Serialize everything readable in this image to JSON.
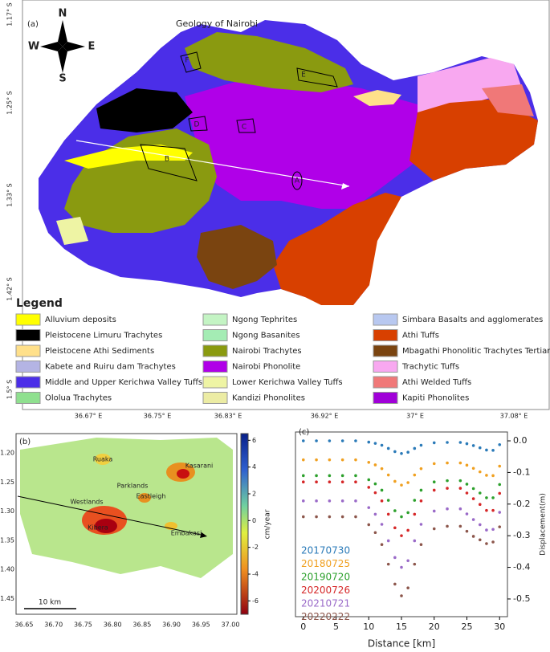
{
  "map_a": {
    "panel_label": "(a)",
    "title": "Geology of Nairobi",
    "compass": {
      "north": "N",
      "south": "S",
      "east": "E",
      "west": "W"
    },
    "box_labels": [
      "A",
      "B",
      "C",
      "D",
      "E",
      "F"
    ],
    "lat_labels": [
      "1.17° S",
      "1.25° S",
      "1.33° S",
      "1.42° S",
      "1.5° S"
    ],
    "lon_labels": [
      "36.67° E",
      "36.75° E",
      "36.83° E",
      "36.92° E",
      "37° E",
      "37.08° E"
    ],
    "legend_title": "Legend",
    "legend": [
      {
        "name": "Alluvium deposits",
        "color": "#ffff00"
      },
      {
        "name": "Pleistocene Limuru Trachytes",
        "color": "#000000"
      },
      {
        "name": "Pleistocene Athi Sediments",
        "color": "#ffe08a"
      },
      {
        "name": "Kabete and Ruiru dam Trachytes",
        "color": "#b4b4e4"
      },
      {
        "name": "Middle and Upper Kerichwa Valley Tuffs",
        "color": "#4b2ee8"
      },
      {
        "name": "Ololua Trachytes",
        "color": "#8fe08f"
      },
      {
        "name": "Ngong Tephrites",
        "color": "#c4f4c4"
      },
      {
        "name": "Ngong Basanites",
        "color": "#a4ecb4"
      },
      {
        "name": "Nairobi Trachytes",
        "color": "#8a9a10"
      },
      {
        "name": "Nairobi Phonolite",
        "color": "#b000e8"
      },
      {
        "name": "Lower Kerichwa Valley Tuffs",
        "color": "#eef4a4"
      },
      {
        "name": "Kandizi Phonolites",
        "color": "#ececa4"
      },
      {
        "name": "Simbara Basalts and agglomerates",
        "color": "#b8c8f0"
      },
      {
        "name": "Athi Tuffs",
        "color": "#d84000"
      },
      {
        "name": "Mbagathi Phonolitic Trachytes Tertiary",
        "color": "#7a4410"
      },
      {
        "name": "Trachytic Tuffs",
        "color": "#f8a8f0"
      },
      {
        "name": "Athi Welded Tuffs",
        "color": "#f07878"
      },
      {
        "name": "Kapiti Phonolites",
        "color": "#a000d8"
      }
    ]
  },
  "map_b": {
    "panel_label": "(b)",
    "places": [
      "Ruaka",
      "Kasarani",
      "Parklands",
      "Eastleigh",
      "Westlands",
      "Kibera",
      "Embakasi"
    ],
    "x_tick_labels": [
      "36.65",
      "36.70",
      "36.75",
      "36.80",
      "36.85",
      "36.90",
      "36.95",
      "37.00"
    ],
    "y_tick_labels": [
      "-1.20",
      "-1.25",
      "-1.30",
      "-1.35",
      "-1.40",
      "-1.45"
    ],
    "scale_bar": "10 km",
    "colorbar_label": "cm/year",
    "colorbar_lim": [
      -7,
      6.5
    ],
    "colorbar_ticks": [
      6,
      4,
      2,
      0,
      -2,
      -4,
      -6
    ]
  },
  "chart_data": {
    "type": "scatter",
    "panel_label": "(c)",
    "x_label": "Distance [km]",
    "y_label": "Displacement(m)",
    "xlim": [
      -1.2,
      31.2
    ],
    "ylim": [
      -0.556,
      0.028
    ],
    "xticks": [
      0,
      5,
      10,
      15,
      20,
      25,
      30
    ],
    "yticks": [
      {
        "value": 0,
        "label": "0.0"
      },
      -0.1,
      -0.2,
      -0.3,
      -0.4,
      -0.5
    ],
    "x": [
      0,
      2,
      4,
      6,
      8,
      10,
      11,
      12,
      13,
      14,
      15,
      16,
      17,
      18,
      20,
      22,
      24,
      25,
      26,
      27,
      28,
      29,
      30
    ],
    "series": [
      {
        "name": "20170730",
        "color": "#2a7ab8",
        "values": [
          0,
          0,
          0,
          0,
          0,
          -0.004,
          -0.008,
          -0.014,
          -0.024,
          -0.034,
          -0.04,
          -0.036,
          -0.024,
          -0.014,
          -0.006,
          -0.005,
          -0.005,
          -0.009,
          -0.015,
          -0.022,
          -0.029,
          -0.03,
          -0.012
        ]
      },
      {
        "name": "20180725",
        "color": "#f0a020",
        "values": [
          -0.06,
          -0.06,
          -0.06,
          -0.06,
          -0.06,
          -0.068,
          -0.076,
          -0.088,
          -0.108,
          -0.128,
          -0.14,
          -0.132,
          -0.108,
          -0.088,
          -0.072,
          -0.07,
          -0.07,
          -0.077,
          -0.087,
          -0.098,
          -0.109,
          -0.11,
          -0.08
        ]
      },
      {
        "name": "20190720",
        "color": "#2ca02c",
        "values": [
          -0.11,
          -0.11,
          -0.11,
          -0.11,
          -0.11,
          -0.123,
          -0.136,
          -0.156,
          -0.188,
          -0.221,
          -0.24,
          -0.227,
          -0.188,
          -0.156,
          -0.13,
          -0.126,
          -0.126,
          -0.137,
          -0.151,
          -0.165,
          -0.18,
          -0.18,
          -0.138
        ]
      },
      {
        "name": "20200726",
        "color": "#d62728",
        "values": [
          -0.13,
          -0.13,
          -0.13,
          -0.13,
          -0.13,
          -0.147,
          -0.164,
          -0.19,
          -0.232,
          -0.275,
          -0.3,
          -0.283,
          -0.232,
          -0.19,
          -0.156,
          -0.15,
          -0.15,
          -0.165,
          -0.183,
          -0.201,
          -0.22,
          -0.22,
          -0.166
        ]
      },
      {
        "name": "20210721",
        "color": "#9a6ac8",
        "values": [
          -0.19,
          -0.19,
          -0.19,
          -0.19,
          -0.19,
          -0.211,
          -0.232,
          -0.264,
          -0.316,
          -0.369,
          -0.4,
          -0.379,
          -0.316,
          -0.264,
          -0.222,
          -0.215,
          -0.215,
          -0.231,
          -0.249,
          -0.265,
          -0.282,
          -0.28,
          -0.226
        ]
      },
      {
        "name": "20220222",
        "color": "#8c564b",
        "values": [
          -0.24,
          -0.24,
          -0.24,
          -0.24,
          -0.24,
          -0.265,
          -0.29,
          -0.328,
          -0.39,
          -0.453,
          -0.49,
          -0.465,
          -0.39,
          -0.328,
          -0.278,
          -0.27,
          -0.27,
          -0.286,
          -0.302,
          -0.313,
          -0.325,
          -0.32,
          -0.272
        ]
      }
    ]
  }
}
